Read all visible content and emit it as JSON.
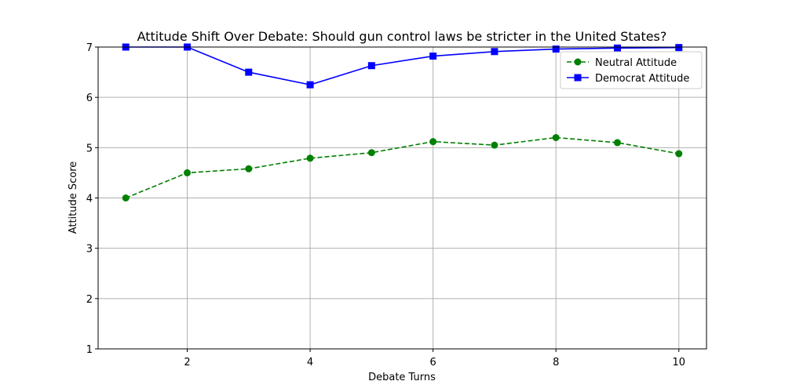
{
  "chart_data": {
    "type": "line",
    "title": "Attitude Shift Over Debate: Should gun control laws be stricter in the United States?",
    "xlabel": "Debate Turns",
    "ylabel": "Attitude Score",
    "x": [
      1,
      2,
      3,
      4,
      5,
      6,
      7,
      8,
      9,
      10
    ],
    "xticks": [
      "2",
      "4",
      "6",
      "8",
      "10"
    ],
    "yticks": [
      "1",
      "2",
      "3",
      "4",
      "5",
      "6",
      "7"
    ],
    "xlim": [
      0.55,
      10.45
    ],
    "ylim": [
      1,
      7
    ],
    "grid": true,
    "legend_position": "top-right",
    "series": [
      {
        "name": "Neutral Attitude",
        "values": [
          4.0,
          4.5,
          4.58,
          4.79,
          4.9,
          5.12,
          5.05,
          5.2,
          5.1,
          4.88
        ],
        "color": "#008000",
        "line_style": "dashed",
        "marker": "circle"
      },
      {
        "name": "Democrat Attitude",
        "values": [
          7.0,
          7.0,
          6.5,
          6.25,
          6.63,
          6.82,
          6.91,
          6.96,
          6.98,
          6.99
        ],
        "color": "#0000ff",
        "line_style": "solid",
        "marker": "square"
      }
    ]
  }
}
